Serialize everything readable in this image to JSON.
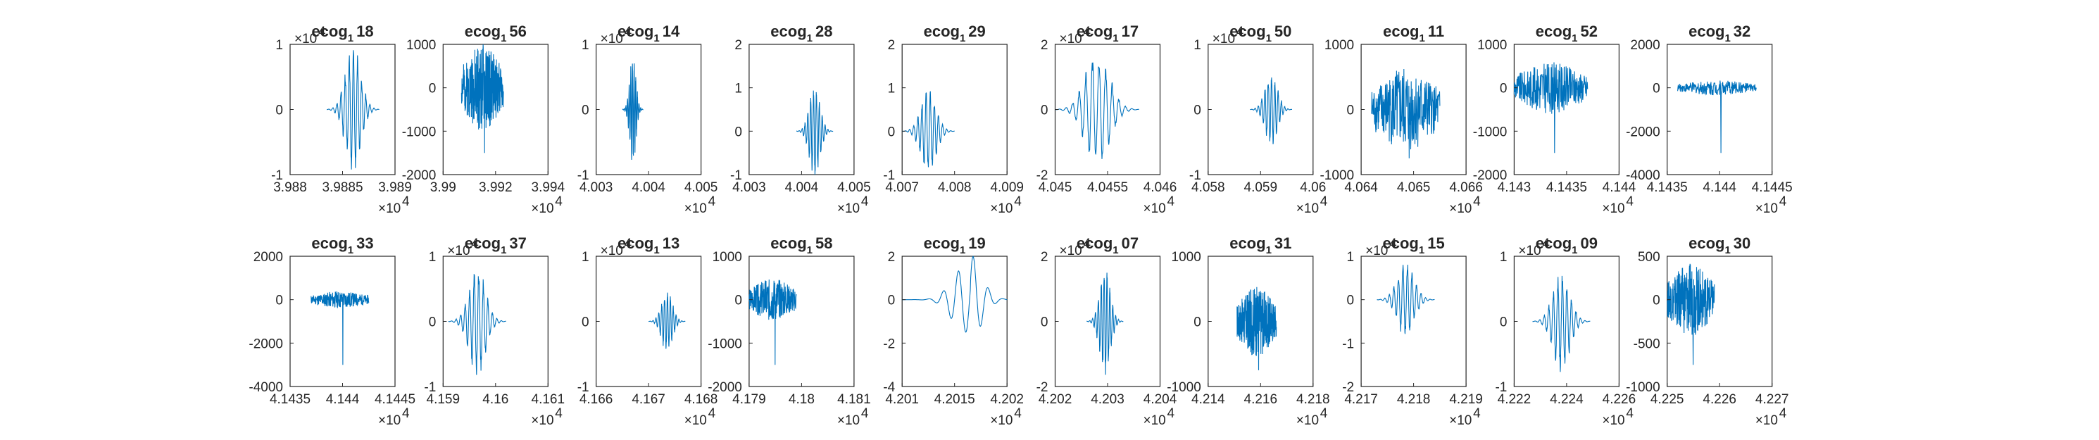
{
  "figure": {
    "trace_color": "#0072BD",
    "axis_color": "#262626",
    "background": "#ffffff"
  },
  "chart_data": [
    {
      "type": "line",
      "title_base": "ecog",
      "title_sub": "1",
      "title_tail": "18",
      "xlim": [
        39880,
        39890
      ],
      "xticks": [
        "3.988",
        "3.9885",
        "3.989"
      ],
      "x_exponent": "4",
      "ylim": [
        -1,
        1
      ],
      "yticks": [
        "-1",
        "0",
        "1"
      ],
      "y_exponent": "4",
      "signal": {
        "start": 39883.5,
        "end": 39888.5,
        "peak": 1,
        "style": "burst",
        "seed": 1
      }
    },
    {
      "type": "line",
      "title_base": "ecog",
      "title_sub": "1",
      "title_tail": "56",
      "xlim": [
        39900,
        39940
      ],
      "xticks": [
        "3.99",
        "3.992",
        "3.994"
      ],
      "x_exponent": "4",
      "ylim": [
        -2000,
        1000
      ],
      "yticks": [
        "-2000",
        "-1000",
        "0",
        "1000"
      ],
      "y_exponent": "",
      "signal": {
        "start": 39907,
        "end": 39923,
        "peak": 1000,
        "style": "noise",
        "seed": 2
      }
    },
    {
      "type": "line",
      "title_base": "ecog",
      "title_sub": "1",
      "title_tail": "14",
      "xlim": [
        40030,
        40050
      ],
      "xticks": [
        "4.003",
        "4.004",
        "4.005"
      ],
      "x_exponent": "4",
      "ylim": [
        -1,
        1
      ],
      "yticks": [
        "-1",
        "0",
        "1"
      ],
      "y_exponent": "4",
      "signal": {
        "start": 40035,
        "end": 40039,
        "peak": 0.9,
        "style": "burst",
        "seed": 3
      }
    },
    {
      "type": "line",
      "title_base": "ecog",
      "title_sub": "1",
      "title_tail": "28",
      "xlim": [
        40030,
        40050
      ],
      "xticks": [
        "4.003",
        "4.004",
        "4.005"
      ],
      "x_exponent": "4",
      "ylim": [
        -1,
        2
      ],
      "yticks": [
        "-1",
        "0",
        "1",
        "2"
      ],
      "y_exponent": "",
      "signal": {
        "start": 40039,
        "end": 40046,
        "peak": 1.1,
        "style": "burst",
        "seed": 4
      }
    },
    {
      "type": "line",
      "title_base": "ecog",
      "title_sub": "1",
      "title_tail": "29",
      "xlim": [
        40070,
        40090
      ],
      "xticks": [
        "4.007",
        "4.008",
        "4.009"
      ],
      "x_exponent": "4",
      "ylim": [
        -1,
        2
      ],
      "yticks": [
        "-1",
        "0",
        "1",
        "2"
      ],
      "y_exponent": "",
      "signal": {
        "start": 40070,
        "end": 40080,
        "peak": 1,
        "style": "burst",
        "seed": 5
      }
    },
    {
      "type": "line",
      "title_base": "ecog",
      "title_sub": "1",
      "title_tail": "17",
      "xlim": [
        40450,
        40460
      ],
      "xticks": [
        "4.045",
        "4.0455",
        "4.046"
      ],
      "x_exponent": "4",
      "ylim": [
        -2,
        2
      ],
      "yticks": [
        "-2",
        "0",
        "2"
      ],
      "y_exponent": "4",
      "signal": {
        "start": 40450,
        "end": 40458,
        "peak": 1.8,
        "style": "burst",
        "seed": 6
      }
    },
    {
      "type": "line",
      "title_base": "ecog",
      "title_sub": "1",
      "title_tail": "50",
      "xlim": [
        40580,
        40600
      ],
      "xticks": [
        "4.058",
        "4.059",
        "4.06"
      ],
      "x_exponent": "4",
      "ylim": [
        -1,
        1
      ],
      "yticks": [
        "-1",
        "0",
        "1"
      ],
      "y_exponent": "4",
      "signal": {
        "start": 40588,
        "end": 40596,
        "peak": 0.6,
        "style": "burst",
        "seed": 7
      }
    },
    {
      "type": "line",
      "title_base": "ecog",
      "title_sub": "1",
      "title_tail": "11",
      "xlim": [
        40640,
        40660
      ],
      "xticks": [
        "4.064",
        "4.065",
        "4.066"
      ],
      "x_exponent": "4",
      "ylim": [
        -1000,
        1000
      ],
      "yticks": [
        "-1000",
        "0",
        "1000"
      ],
      "y_exponent": "",
      "signal": {
        "start": 40642,
        "end": 40655,
        "peak": 650,
        "style": "noise",
        "seed": 8
      }
    },
    {
      "type": "line",
      "title_base": "ecog",
      "title_sub": "1",
      "title_tail": "52",
      "xlim": [
        41430,
        41440
      ],
      "xticks": [
        "4.143",
        "4.1435",
        "4.144"
      ],
      "x_exponent": "4",
      "ylim": [
        -2000,
        1000
      ],
      "yticks": [
        "-2000",
        "-1000",
        "0",
        "1000"
      ],
      "y_exponent": "",
      "signal": {
        "start": 41430,
        "end": 41437,
        "peak": 600,
        "style": "noise",
        "seed": 9
      }
    },
    {
      "type": "line",
      "title_base": "ecog",
      "title_sub": "1",
      "title_tail": "32",
      "xlim": [
        41435,
        41445
      ],
      "xticks": [
        "4.1435",
        "4.144",
        "4.1445"
      ],
      "x_exponent": "4",
      "ylim": [
        -4000,
        2000
      ],
      "yticks": [
        "-4000",
        "-2000",
        "0",
        "2000"
      ],
      "y_exponent": "",
      "signal": {
        "start": 41436,
        "end": 41443.5,
        "peak": 350,
        "style": "noise",
        "seed": 10
      }
    },
    {
      "type": "line",
      "title_base": "ecog",
      "title_sub": "1",
      "title_tail": "33",
      "xlim": [
        41435,
        41445
      ],
      "xticks": [
        "4.1435",
        "4.144",
        "4.1445"
      ],
      "x_exponent": "4",
      "ylim": [
        -4000,
        2000
      ],
      "yticks": [
        "-4000",
        "-2000",
        "0",
        "2000"
      ],
      "y_exponent": "",
      "signal": {
        "start": 41437,
        "end": 41442.5,
        "peak": 400,
        "style": "noise",
        "seed": 11
      }
    },
    {
      "type": "line",
      "title_base": "ecog",
      "title_sub": "1",
      "title_tail": "37",
      "xlim": [
        41590,
        41610
      ],
      "xticks": [
        "4.159",
        "4.16",
        "4.161"
      ],
      "x_exponent": "4",
      "ylim": [
        -1,
        1
      ],
      "yticks": [
        "-1",
        "0",
        "1"
      ],
      "y_exponent": "4",
      "signal": {
        "start": 41591,
        "end": 41602,
        "peak": 0.85,
        "style": "burst",
        "seed": 12
      }
    },
    {
      "type": "line",
      "title_base": "ecog",
      "title_sub": "1",
      "title_tail": "13",
      "xlim": [
        41660,
        41680
      ],
      "xticks": [
        "4.166",
        "4.167",
        "4.168"
      ],
      "x_exponent": "4",
      "ylim": [
        -1,
        1
      ],
      "yticks": [
        "-1",
        "0",
        "1"
      ],
      "y_exponent": "4",
      "signal": {
        "start": 41670,
        "end": 41677,
        "peak": 0.5,
        "style": "burst",
        "seed": 13
      }
    },
    {
      "type": "line",
      "title_base": "ecog",
      "title_sub": "1",
      "title_tail": "58",
      "xlim": [
        41790,
        41810
      ],
      "xticks": [
        "4.179",
        "4.18",
        "4.181"
      ],
      "x_exponent": "4",
      "ylim": [
        -2000,
        1000
      ],
      "yticks": [
        "-2000",
        "-1000",
        "0",
        "1000"
      ],
      "y_exponent": "",
      "signal": {
        "start": 41790,
        "end": 41799,
        "peak": 500,
        "style": "noise",
        "seed": 14
      }
    },
    {
      "type": "line",
      "title_base": "ecog",
      "title_sub": "1",
      "title_tail": "19",
      "xlim": [
        42010,
        42020
      ],
      "xticks": [
        "4.201",
        "4.2015",
        "4.202"
      ],
      "x_exponent": "4",
      "ylim": [
        -4,
        2
      ],
      "yticks": [
        "-4",
        "-2",
        "0",
        "2"
      ],
      "y_exponent": "",
      "signal": {
        "start": 42010,
        "end": 42020,
        "peak": 1.5,
        "style": "wave",
        "seed": 15
      }
    },
    {
      "type": "line",
      "title_base": "ecog",
      "title_sub": "1",
      "title_tail": "07",
      "xlim": [
        42020,
        42040
      ],
      "xticks": [
        "4.202",
        "4.203",
        "4.204"
      ],
      "x_exponent": "4",
      "ylim": [
        -2,
        2
      ],
      "yticks": [
        "-2",
        "0",
        "2"
      ],
      "y_exponent": "4",
      "signal": {
        "start": 42026,
        "end": 42033,
        "peak": 1.7,
        "style": "burst",
        "seed": 16
      }
    },
    {
      "type": "line",
      "title_base": "ecog",
      "title_sub": "1",
      "title_tail": "31",
      "xlim": [
        42140,
        42180
      ],
      "xticks": [
        "4.214",
        "4.216",
        "4.218"
      ],
      "x_exponent": "4",
      "ylim": [
        -1000,
        1000
      ],
      "yticks": [
        "-1000",
        "0",
        "1000"
      ],
      "y_exponent": "",
      "signal": {
        "start": 42151,
        "end": 42166,
        "peak": 550,
        "style": "noise",
        "seed": 17
      }
    },
    {
      "type": "line",
      "title_base": "ecog",
      "title_sub": "1",
      "title_tail": "15",
      "xlim": [
        42170,
        42190
      ],
      "xticks": [
        "4.217",
        "4.218",
        "4.219"
      ],
      "x_exponent": "4",
      "ylim": [
        -2,
        1
      ],
      "yticks": [
        "-2",
        "-1",
        "0",
        "1"
      ],
      "y_exponent": "4",
      "signal": {
        "start": 42173,
        "end": 42184,
        "peak": 0.9,
        "style": "burst",
        "seed": 18
      }
    },
    {
      "type": "line",
      "title_base": "ecog",
      "title_sub": "1",
      "title_tail": "09",
      "xlim": [
        42220,
        42260
      ],
      "xticks": [
        "4.222",
        "4.224",
        "4.226"
      ],
      "x_exponent": "4",
      "ylim": [
        -1,
        1
      ],
      "yticks": [
        "-1",
        "0",
        "1"
      ],
      "y_exponent": "4",
      "signal": {
        "start": 42227,
        "end": 42249,
        "peak": 0.8,
        "style": "burst",
        "seed": 19
      }
    },
    {
      "type": "line",
      "title_base": "ecog",
      "title_sub": "1",
      "title_tail": "30",
      "xlim": [
        42250,
        42270
      ],
      "xticks": [
        "4.225",
        "4.226",
        "4.227"
      ],
      "x_exponent": "4",
      "ylim": [
        -1000,
        500
      ],
      "yticks": [
        "-1000",
        "-500",
        "0",
        "500"
      ],
      "y_exponent": "",
      "signal": {
        "start": 42250,
        "end": 42259,
        "peak": 420,
        "style": "noise",
        "seed": 20
      }
    }
  ]
}
